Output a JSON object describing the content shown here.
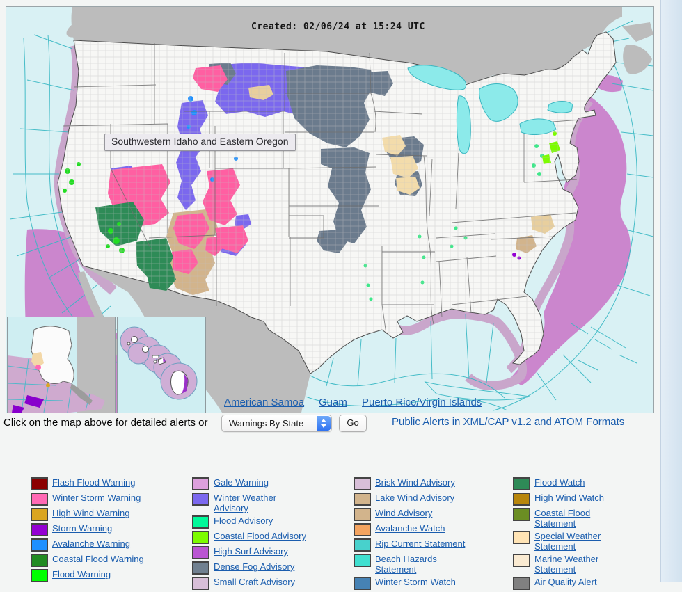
{
  "map": {
    "created": "Created: 02/06/24 at 15:24 UTC",
    "tooltip": "Southwestern Idaho and Eastern Oregon",
    "territory_links": [
      {
        "label": "American Samoa"
      },
      {
        "label": "Guam"
      },
      {
        "label": "Puerto Rico/Virgin Islands"
      }
    ]
  },
  "controls": {
    "prompt": "Click on the map above for detailed alerts or",
    "select_value": "Warnings By State",
    "go": "Go",
    "formats_link": "Public Alerts in XML/CAP v1.2 and ATOM Formats"
  },
  "colors": {
    "ocean": "#d9f1f4",
    "marine_grid": "#35b7c3",
    "foreign_land": "#bcbcbc",
    "us_land": "#f7f7f5",
    "link_blue": "#1a5dae"
  },
  "legend": {
    "columns": [
      {
        "items": [
          {
            "label": "Flash Flood Warning",
            "color": "#8B0000"
          },
          {
            "label": "Winter Storm Warning",
            "color": "#FF69B4"
          },
          {
            "label": "High Wind Warning",
            "color": "#DAA520"
          },
          {
            "label": "Storm Warning",
            "color": "#9400D3"
          },
          {
            "label": "Avalanche Warning",
            "color": "#1E90FF"
          },
          {
            "label": "Coastal Flood Warning",
            "color": "#228B22"
          },
          {
            "label": "Flood Warning",
            "color": "#00FF00"
          }
        ]
      },
      {
        "items": [
          {
            "label": "Gale Warning",
            "color": "#DDA0DD"
          },
          {
            "label": "Winter Weather\nAdvisory",
            "color": "#7B68EE"
          },
          {
            "label": "Flood Advisory",
            "color": "#00FA9A"
          },
          {
            "label": "Coastal Flood Advisory",
            "color": "#7CFC00"
          },
          {
            "label": "High Surf Advisory",
            "color": "#BA55D3"
          },
          {
            "label": "Dense Fog Advisory",
            "color": "#708090"
          },
          {
            "label": "Small Craft Advisory",
            "color": "#D8BFD8"
          }
        ]
      },
      {
        "items": [
          {
            "label": "Brisk Wind Advisory",
            "color": "#D8BFD8"
          },
          {
            "label": "Lake Wind Advisory",
            "color": "#D2B48C"
          },
          {
            "label": "Wind Advisory",
            "color": "#D2B48C"
          },
          {
            "label": "Avalanche Watch",
            "color": "#F4A460"
          },
          {
            "label": "Rip Current Statement",
            "color": "#48D1CC"
          },
          {
            "label": "Beach Hazards\nStatement",
            "color": "#40E0D0"
          },
          {
            "label": "Winter Storm Watch",
            "color": "#4682B4"
          }
        ]
      },
      {
        "items": [
          {
            "label": "Flood Watch",
            "color": "#2E8B57"
          },
          {
            "label": "High Wind Watch",
            "color": "#B8860B"
          },
          {
            "label": "Coastal Flood\nStatement",
            "color": "#6B8E23"
          },
          {
            "label": "Special Weather\nStatement",
            "color": "#FFE4B5"
          },
          {
            "label": "Marine Weather\nStatement",
            "color": "#FAEBD2"
          },
          {
            "label": "Air Quality Alert",
            "color": "#808080"
          }
        ]
      }
    ]
  }
}
